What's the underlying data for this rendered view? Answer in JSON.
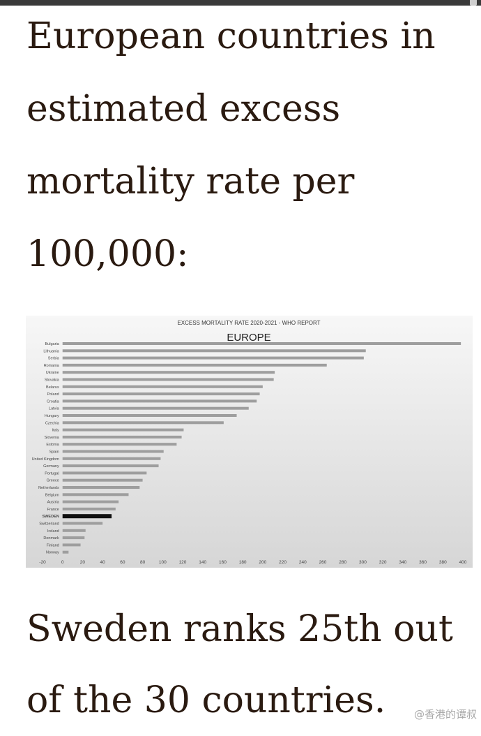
{
  "headline": "European countries in\nestimated excess\nmortality rate per\n100,000:",
  "conclusion": "Sweden ranks 25th out\nof the 30 countries.",
  "watermark": "@香港的谭叔",
  "colors": {
    "text": "#2a1a10",
    "bar": "#9e9e9e",
    "bar_highlight": "#111111",
    "chart_bg_top": "#f7f7f7",
    "chart_bg_bottom": "#d6d6d6"
  },
  "chart_data": {
    "type": "bar",
    "orientation": "horizontal",
    "supertitle": "EXCESS MORTALITY RATE 2020-2021 - WHO REPORT",
    "title": "EUROPE",
    "xlabel": "",
    "ylabel": "",
    "xlim": [
      -20,
      400
    ],
    "xticks": [
      -20,
      0,
      20,
      40,
      60,
      80,
      100,
      120,
      140,
      160,
      180,
      200,
      220,
      240,
      260,
      280,
      300,
      320,
      340,
      360,
      380,
      400
    ],
    "highlight": "SWEDEN",
    "grid": false,
    "categories": [
      "Bulgaria",
      "Lithuania",
      "Serbia",
      "Romania",
      "Ukraine",
      "Slovakia",
      "Belarus",
      "Poland",
      "Croatia",
      "Latvia",
      "Hungary",
      "Czechia",
      "Italy",
      "Slovenia",
      "Estonia",
      "Spain",
      "United Kingdom",
      "Germany",
      "Portugal",
      "Greece",
      "Netherlands",
      "Belgium",
      "Austria",
      "France",
      "SWEDEN",
      "Switzerland",
      "Ireland",
      "Denmark",
      "Finland",
      "Norway"
    ],
    "values": [
      398,
      303,
      301,
      264,
      212,
      211,
      200,
      197,
      194,
      186,
      174,
      161,
      121,
      119,
      114,
      101,
      98,
      96,
      84,
      80,
      77,
      66,
      56,
      53,
      49,
      40,
      23,
      22,
      18,
      6
    ]
  }
}
